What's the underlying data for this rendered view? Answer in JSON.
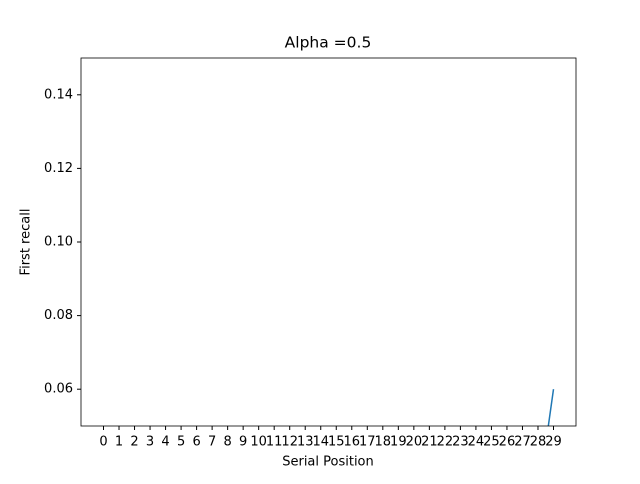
{
  "chart_data": {
    "type": "line",
    "title": "Alpha =0.5",
    "xlabel": "Serial Position",
    "ylabel": "First recall",
    "x": [
      0,
      1,
      2,
      3,
      4,
      5,
      6,
      7,
      8,
      9,
      10,
      11,
      12,
      13,
      14,
      15,
      16,
      17,
      18,
      19,
      20,
      21,
      22,
      23,
      24,
      25,
      26,
      27,
      28,
      29
    ],
    "series": [
      {
        "color": "#1f77b4",
        "values": [
          null,
          null,
          null,
          null,
          null,
          null,
          null,
          null,
          null,
          null,
          null,
          null,
          null,
          null,
          null,
          null,
          null,
          null,
          null,
          null,
          null,
          null,
          null,
          null,
          null,
          null,
          null,
          null,
          0.03,
          0.06
        ]
      }
    ],
    "xlim": [
      -1.45,
      30.45
    ],
    "xticks": [
      0,
      1,
      2,
      3,
      4,
      5,
      6,
      7,
      8,
      9,
      10,
      11,
      12,
      13,
      14,
      15,
      16,
      17,
      18,
      19,
      20,
      21,
      22,
      23,
      24,
      25,
      26,
      27,
      28,
      29
    ],
    "ylim": [
      0.05,
      0.15
    ],
    "yticks": [
      0.06,
      0.08,
      {
        "value": 0.1,
        "label": "0.10"
      },
      0.12,
      0.14
    ]
  }
}
